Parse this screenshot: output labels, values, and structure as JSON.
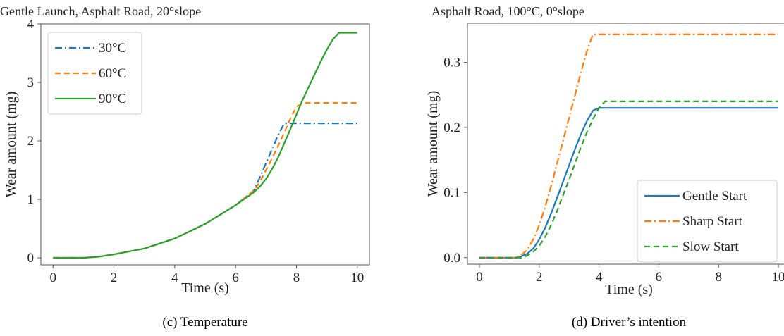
{
  "chart_data": [
    {
      "type": "line",
      "title": "Gentle Launch, Asphalt Road, 20°slope",
      "xlabel": "Time (s)",
      "ylabel": "Wear amount (mg)",
      "xlim": [
        -0.4,
        10.4
      ],
      "ylim": [
        -0.12,
        4.0
      ],
      "xticks": [
        0,
        2,
        4,
        6,
        8,
        10
      ],
      "yticks": [
        0,
        1,
        2,
        3,
        4
      ],
      "grid": false,
      "legend_position": "top-left",
      "caption": "(c)   Temperature",
      "series": [
        {
          "name": "30°C",
          "color": "#1f77b4",
          "dash": "dashdot",
          "x": [
            0,
            1,
            1.5,
            2,
            3,
            4,
            5,
            6,
            6.6,
            6.8,
            7.0,
            7.2,
            7.4,
            7.6,
            10
          ],
          "y": [
            0,
            0,
            0.02,
            0.06,
            0.16,
            0.33,
            0.58,
            0.9,
            1.15,
            1.38,
            1.62,
            1.86,
            2.1,
            2.3,
            2.3
          ]
        },
        {
          "name": "60°C",
          "color": "#ff7f0e",
          "dash": "dashed",
          "x": [
            0,
            1,
            1.5,
            2,
            3,
            4,
            5,
            6,
            6.6,
            6.8,
            7.0,
            7.2,
            7.4,
            7.6,
            7.8,
            8.0,
            8.2,
            10
          ],
          "y": [
            0,
            0,
            0.02,
            0.06,
            0.16,
            0.33,
            0.58,
            0.9,
            1.15,
            1.3,
            1.5,
            1.7,
            1.92,
            2.14,
            2.38,
            2.58,
            2.65,
            2.65
          ]
        },
        {
          "name": "90°C",
          "color": "#2ca02c",
          "dash": "solid",
          "x": [
            0,
            1,
            1.5,
            2,
            3,
            4,
            5,
            6,
            6.6,
            6.8,
            7.0,
            7.2,
            7.4,
            7.6,
            7.8,
            8.0,
            8.2,
            8.4,
            8.6,
            8.8,
            9.0,
            9.2,
            9.4,
            10
          ],
          "y": [
            0,
            0,
            0.02,
            0.06,
            0.16,
            0.33,
            0.58,
            0.9,
            1.12,
            1.22,
            1.35,
            1.52,
            1.72,
            1.96,
            2.2,
            2.45,
            2.7,
            2.92,
            3.14,
            3.36,
            3.56,
            3.74,
            3.85,
            3.85
          ]
        }
      ]
    },
    {
      "type": "line",
      "title": "Asphalt Road, 100°C, 0°slope",
      "xlabel": "Time (s)",
      "ylabel": "Wear amount (mg)",
      "xlim": [
        -0.4,
        10.4
      ],
      "ylim": [
        -0.01,
        0.36
      ],
      "xticks": [
        0,
        2,
        4,
        6,
        8,
        10
      ],
      "yticks": [
        0.0,
        0.1,
        0.2,
        0.3
      ],
      "ytick_labels": [
        "0.0",
        "0.1",
        "0.2",
        "0.3"
      ],
      "grid": false,
      "legend_position": "bottom-right",
      "caption": "(d)   Driver’s intention",
      "series": [
        {
          "name": "Gentle Start",
          "color": "#1f77b4",
          "dash": "solid",
          "x": [
            0,
            1.2,
            1.4,
            1.6,
            1.8,
            2.0,
            2.2,
            2.4,
            2.6,
            2.8,
            3.0,
            3.2,
            3.4,
            3.6,
            3.8,
            4.0,
            10
          ],
          "y": [
            0,
            0,
            0.002,
            0.006,
            0.014,
            0.028,
            0.046,
            0.068,
            0.092,
            0.117,
            0.142,
            0.167,
            0.19,
            0.21,
            0.226,
            0.23,
            0.23
          ]
        },
        {
          "name": "Sharp Start",
          "color": "#ff7f0e",
          "dash": "dashdot",
          "x": [
            0,
            1.2,
            1.4,
            1.6,
            1.8,
            2.0,
            2.2,
            2.4,
            2.6,
            2.8,
            3.0,
            3.2,
            3.4,
            3.6,
            3.8,
            10
          ],
          "y": [
            0,
            0,
            0.004,
            0.012,
            0.028,
            0.05,
            0.078,
            0.11,
            0.145,
            0.18,
            0.215,
            0.25,
            0.285,
            0.318,
            0.343,
            0.343
          ]
        },
        {
          "name": "Slow Start",
          "color": "#2ca02c",
          "dash": "dashed",
          "x": [
            0,
            1.4,
            1.6,
            1.8,
            2.0,
            2.2,
            2.4,
            2.6,
            2.8,
            3.0,
            3.2,
            3.4,
            3.6,
            3.8,
            4.0,
            4.2,
            10
          ],
          "y": [
            0,
            0,
            0.003,
            0.009,
            0.018,
            0.032,
            0.05,
            0.072,
            0.096,
            0.12,
            0.145,
            0.17,
            0.193,
            0.213,
            0.23,
            0.24,
            0.24
          ]
        }
      ]
    }
  ]
}
